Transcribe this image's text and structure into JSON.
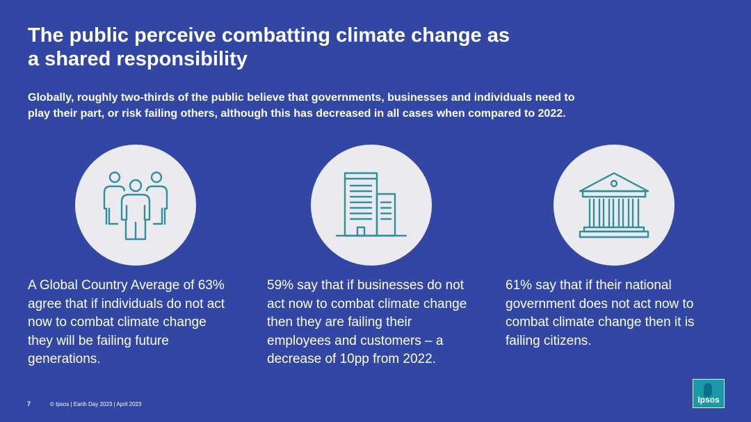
{
  "slide": {
    "title_line1": "The public perceive combatting climate change as",
    "title_line2": "a shared responsibility",
    "subtitle_line1": "Globally, roughly two-thirds of the public believe that governments, businesses and individuals need to",
    "subtitle_line2": "play their part, or risk failing others, although this has decreased in all cases when compared to 2022."
  },
  "icons": {
    "people": "people-group-icon",
    "building": "office-building-icon",
    "government": "government-building-icon",
    "line_color": "#2f8f9b",
    "circle_color": "#ebeaee"
  },
  "stats": [
    {
      "lines": [
        "A Global Country Average of 63%",
        "agree that if individuals do not act",
        "now to combat climate change",
        "they will be failing future",
        "generations."
      ]
    },
    {
      "lines": [
        "59% say that if businesses do not",
        "act now to combat climate change",
        "then they are failing their",
        "employees and customers – a",
        "decrease of 10pp from 2022."
      ]
    },
    {
      "lines": [
        "61% say that if their national",
        "government does not act now to",
        "combat climate change then it is",
        "failing citizens."
      ]
    }
  ],
  "footer": {
    "page_number": "7",
    "text": "© Ipsos | Earth Day 2023 | April 2023"
  },
  "logo": {
    "text": "Ipsos",
    "color": "#1a9aa6"
  },
  "colors": {
    "background": "#3147a3",
    "text": "#ffffff"
  }
}
